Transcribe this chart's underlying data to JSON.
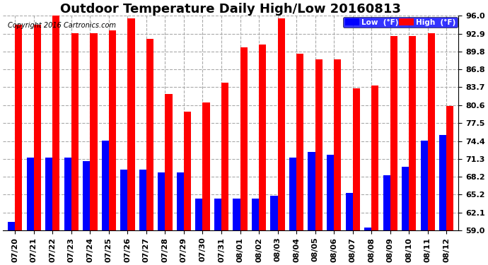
{
  "title": "Outdoor Temperature Daily High/Low 20160813",
  "copyright": "Copyright 2016 Cartronics.com",
  "legend_low": "Low  (°F)",
  "legend_high": "High  (°F)",
  "categories": [
    "07/20",
    "07/21",
    "07/22",
    "07/23",
    "07/24",
    "07/25",
    "07/26",
    "07/27",
    "07/28",
    "07/29",
    "07/30",
    "07/31",
    "08/01",
    "08/02",
    "08/03",
    "08/04",
    "08/05",
    "08/06",
    "08/07",
    "08/08",
    "08/09",
    "08/10",
    "08/11",
    "08/12"
  ],
  "high_values": [
    94.5,
    94.5,
    96.0,
    93.0,
    93.0,
    93.5,
    95.5,
    92.0,
    82.5,
    79.5,
    81.0,
    84.5,
    90.5,
    91.0,
    95.5,
    89.5,
    88.5,
    88.5,
    83.5,
    84.0,
    92.5,
    92.5,
    93.0,
    80.5
  ],
  "low_values": [
    60.5,
    71.5,
    71.5,
    71.5,
    71.0,
    74.5,
    69.5,
    69.5,
    69.0,
    69.0,
    64.5,
    64.5,
    64.5,
    64.5,
    65.0,
    71.5,
    72.5,
    72.0,
    65.5,
    59.5,
    68.5,
    70.0,
    74.5,
    75.5
  ],
  "high_color": "#ff0000",
  "low_color": "#0000ff",
  "bg_color": "#ffffff",
  "grid_color": "#aaaaaa",
  "ymin": 59.0,
  "ymax": 96.0,
  "yticks": [
    59.0,
    62.1,
    65.2,
    68.2,
    71.3,
    74.4,
    77.5,
    80.6,
    83.7,
    86.8,
    89.8,
    92.9,
    96.0
  ],
  "title_fontsize": 13,
  "copyright_fontsize": 7,
  "tick_fontsize": 8,
  "bar_width": 0.38
}
